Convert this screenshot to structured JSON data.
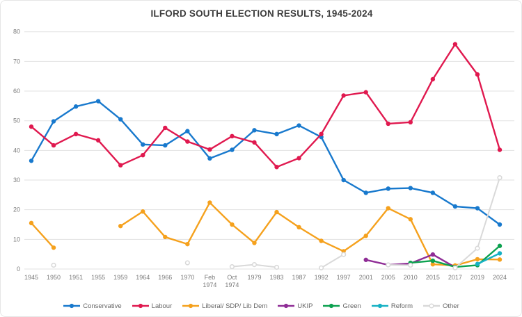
{
  "chart_data": {
    "type": "line",
    "title": "ILFORD SOUTH ELECTION RESULTS, 1945-2024",
    "xlabel": "",
    "ylabel": "",
    "ylim": [
      0,
      80
    ],
    "yticks": [
      0,
      10,
      20,
      30,
      40,
      50,
      60,
      70,
      80
    ],
    "grid": true,
    "legend_position": "bottom",
    "categories": [
      "1945",
      "1950",
      "1951",
      "1955",
      "1959",
      "1964",
      "1966",
      "1970",
      "Feb 1974",
      "Oct 1974",
      "1979",
      "1983",
      "1987",
      "1992",
      "1997",
      "2001",
      "2005",
      "2010",
      "2015",
      "2017",
      "2019",
      "2024"
    ],
    "series": [
      {
        "name": "Conservative",
        "color": "#1879cd",
        "marker": "circle",
        "values": [
          36.5,
          49.8,
          54.8,
          56.6,
          50.5,
          42.0,
          41.7,
          46.5,
          37.3,
          40.2,
          46.8,
          45.5,
          48.4,
          44.5,
          30.0,
          25.7,
          27.1,
          27.3,
          25.7,
          21.1,
          20.5,
          15.0
        ]
      },
      {
        "name": "Labour",
        "color": "#e0194f",
        "marker": "circle",
        "values": [
          48.0,
          41.7,
          45.5,
          43.4,
          35.0,
          38.4,
          47.6,
          43.0,
          40.3,
          44.8,
          42.7,
          34.4,
          37.4,
          45.5,
          58.5,
          59.6,
          49.0,
          49.5,
          64.0,
          75.8,
          65.6,
          40.2
        ]
      },
      {
        "name": "Liberal/ SDP/ Lib Dem",
        "color": "#f5a11d",
        "marker": "circle",
        "values": [
          15.5,
          7.2,
          null,
          null,
          14.5,
          19.4,
          10.8,
          8.4,
          22.4,
          15.0,
          8.8,
          19.2,
          14.1,
          9.5,
          6.0,
          11.2,
          20.5,
          16.8,
          1.6,
          1.2,
          3.3,
          3.2
        ]
      },
      {
        "name": "UKIP",
        "color": "#8f2d96",
        "marker": "circle",
        "values": [
          null,
          null,
          null,
          null,
          null,
          null,
          null,
          null,
          null,
          null,
          null,
          null,
          null,
          null,
          null,
          3.1,
          1.4,
          1.9,
          4.9,
          0.6,
          null,
          null
        ]
      },
      {
        "name": "Green",
        "color": "#0ca14f",
        "marker": "circle",
        "values": [
          null,
          null,
          null,
          null,
          null,
          null,
          null,
          null,
          null,
          null,
          null,
          null,
          null,
          null,
          null,
          null,
          null,
          2.1,
          2.8,
          0.7,
          1.3,
          7.8
        ]
      },
      {
        "name": "Reform",
        "color": "#17b1c4",
        "marker": "circle",
        "values": [
          null,
          null,
          null,
          null,
          null,
          null,
          null,
          null,
          null,
          null,
          null,
          null,
          null,
          null,
          null,
          null,
          null,
          null,
          null,
          null,
          1.7,
          5.3
        ]
      },
      {
        "name": "Other",
        "color": "#d9d9d9",
        "marker": "circle-open",
        "values": [
          null,
          1.3,
          null,
          null,
          null,
          null,
          null,
          2.1,
          null,
          0.8,
          1.5,
          0.6,
          null,
          0.4,
          4.9,
          null,
          1.4,
          1.3,
          null,
          0.4,
          7.0,
          30.8
        ]
      }
    ]
  }
}
